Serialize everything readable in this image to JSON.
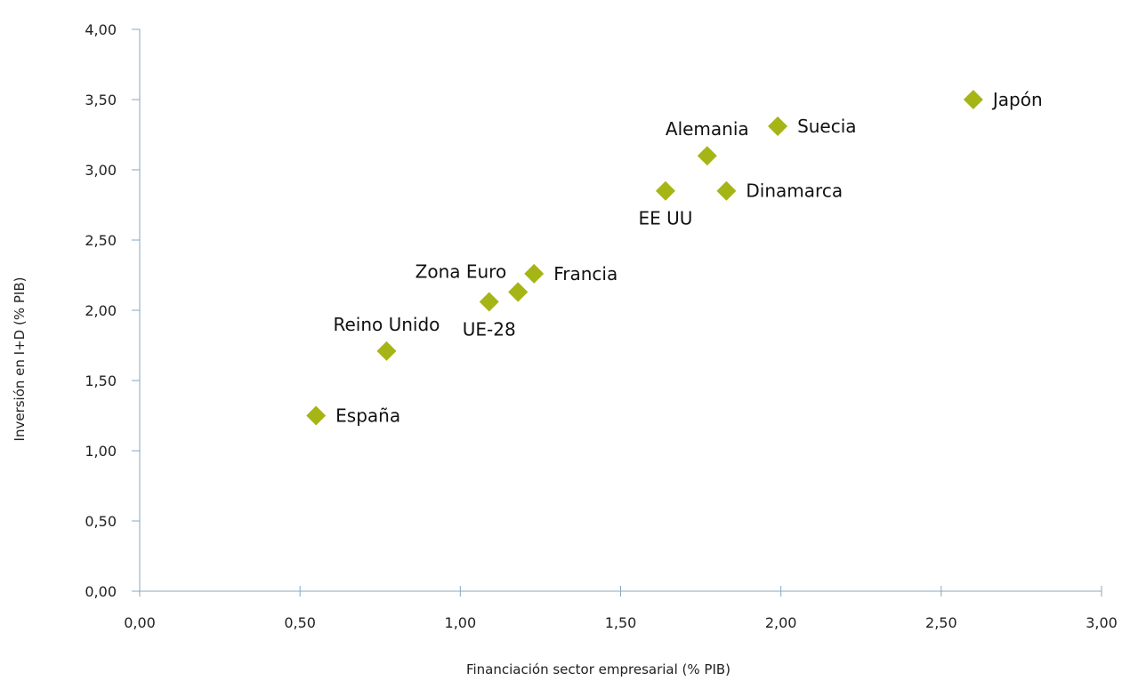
{
  "chart_data": {
    "type": "scatter",
    "title": "",
    "xlabel": "Financiación sector empresarial (% PIB)",
    "ylabel": "Inversión en I+D (% PIB)",
    "xlim": [
      0,
      3
    ],
    "ylim": [
      0,
      4
    ],
    "x_ticks": [
      "0,00",
      "0,50",
      "1,00",
      "1,50",
      "2,00",
      "2,50",
      "3,00"
    ],
    "y_ticks": [
      "0,00",
      "0,50",
      "1,00",
      "1,50",
      "2,00",
      "2,50",
      "3,00",
      "3,50",
      "4,00"
    ],
    "grid": false,
    "legend": "none",
    "marker_color": "#a6b516",
    "marker_shape": "diamond",
    "points": [
      {
        "label": "España",
        "x": 0.55,
        "y": 1.25,
        "label_side": "right"
      },
      {
        "label": "Reino Unido",
        "x": 0.77,
        "y": 1.71,
        "label_side": "above"
      },
      {
        "label": "UE-28",
        "x": 1.09,
        "y": 2.06,
        "label_side": "below"
      },
      {
        "label": "",
        "x": 1.18,
        "y": 2.13,
        "label_side": "none"
      },
      {
        "label": "Zona Euro",
        "x": 1.18,
        "y": 2.13,
        "label_side": "above-left"
      },
      {
        "label": "Francia",
        "x": 1.23,
        "y": 2.26,
        "label_side": "right"
      },
      {
        "label": "EE UU",
        "x": 1.64,
        "y": 2.85,
        "label_side": "below"
      },
      {
        "label": "Alemania",
        "x": 1.77,
        "y": 3.1,
        "label_side": "above"
      },
      {
        "label": "Dinamarca",
        "x": 1.83,
        "y": 2.85,
        "label_side": "right"
      },
      {
        "label": "Suecia",
        "x": 1.99,
        "y": 3.31,
        "label_side": "right"
      },
      {
        "label": "Japón",
        "x": 2.6,
        "y": 3.5,
        "label_side": "right"
      }
    ]
  }
}
